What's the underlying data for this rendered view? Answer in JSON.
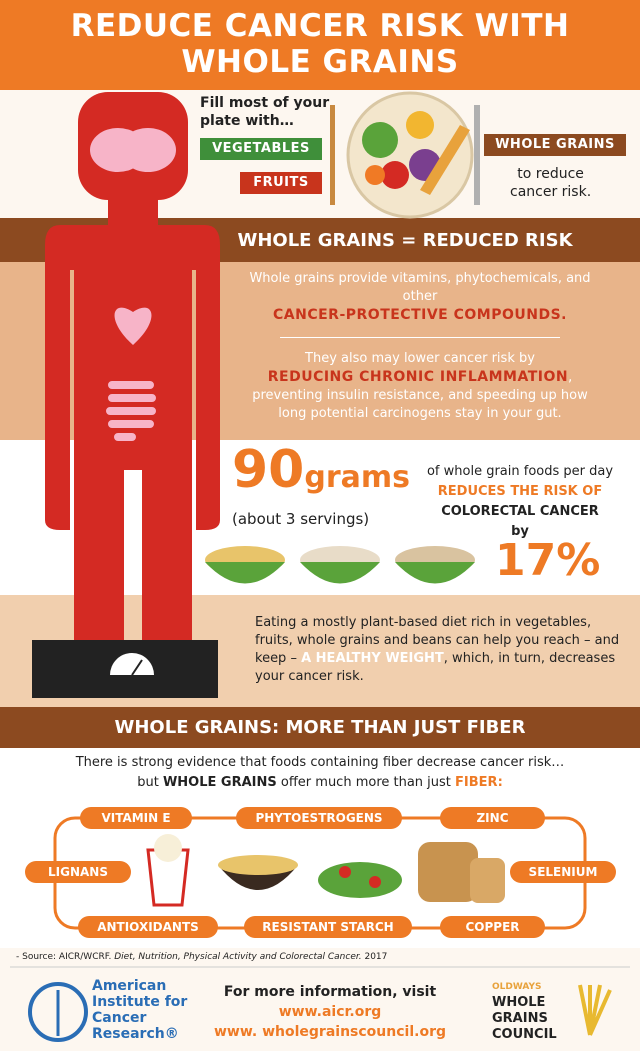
{
  "header": {
    "title_line1": "REDUCE CANCER RISK WITH",
    "title_line2": "WHOLE GRAINS"
  },
  "plate": {
    "intro_line1": "Fill most of your",
    "intro_line2": "plate with…",
    "vegetables": "VEGETABLES",
    "fruits": "FRUITS",
    "whole_grains": "WHOLE GRAINS",
    "outro_line1": "to reduce",
    "outro_line2": "cancer risk."
  },
  "section1": {
    "heading": "WHOLE GRAINS = REDUCED RISK",
    "para1": {
      "text": "Whole grains provide vitamins, phytochemicals, and other",
      "highlight": "CANCER-PROTECTIVE COMPOUNDS."
    },
    "para2": {
      "before": "They also may lower cancer risk by",
      "highlight": "REDUCING CHRONIC INFLAMMATION",
      "after": ", preventing insulin resistance, and speeding up how long potential carcinogens stay in your gut."
    }
  },
  "stat": {
    "number": "90",
    "unit": "grams",
    "servings": "(about 3 servings)",
    "line1": "of whole grain foods per day",
    "line2": "REDUCES THE RISK OF",
    "line3": "COLORECTAL CANCER",
    "line4": "by",
    "percent": "17%"
  },
  "weight": {
    "before": "Eating a mostly plant-based diet rich in vegetables, fruits, whole grains and beans can help you reach – and keep –",
    "highlight": "A HEALTHY WEIGHT",
    "after": ", which, in turn, decreases your cancer risk."
  },
  "section2": {
    "heading": "WHOLE GRAINS: MORE THAN JUST FIBER",
    "line1": "There is strong evidence that foods containing fiber decrease cancer risk…",
    "line2": {
      "a": "but",
      "b": "WHOLE GRAINS",
      "c": "offer much more than just",
      "d": "FIBER:"
    },
    "nutrients": [
      "VITAMIN E",
      "PHYTOESTROGENS",
      "ZINC",
      "LIGNANS",
      "SELENIUM",
      "ANTIOXIDANTS",
      "RESISTANT STARCH",
      "COPPER"
    ]
  },
  "source": {
    "prefix": "- Source:  AICR/WCRF.",
    "title": "Diet, Nutrition, Physical Activity and Colorectal Cancer.",
    "year": "2017"
  },
  "footer": {
    "aicr_logo": "American Institute for Cancer Research®",
    "more_info": "For more information, visit",
    "url1": "www.aicr.org",
    "url2": "www. wholegrainscouncil.org",
    "wgc_small": "OLDWAYS",
    "wgc_line1": "WHOLE",
    "wgc_line2": "GRAINS",
    "wgc_line3": "COUNCIL"
  }
}
